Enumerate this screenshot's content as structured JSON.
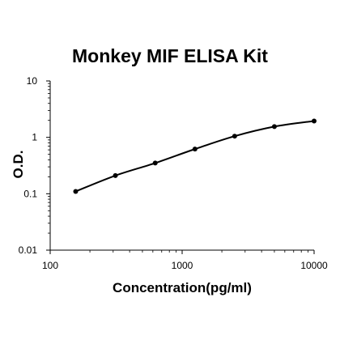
{
  "chart_data": {
    "type": "line",
    "title": "Monkey MIF ELISA Kit",
    "xlabel": "Concentration(pg/ml)",
    "ylabel": "O.D.",
    "xscale": "log",
    "yscale": "log",
    "xlim": [
      100,
      10000
    ],
    "ylim": [
      0.01,
      10
    ],
    "x_ticks": [
      "100",
      "1000",
      "10000"
    ],
    "y_ticks": [
      "10",
      "1",
      "0.1",
      "0.01"
    ],
    "grid": false,
    "legend": "none",
    "series": [
      {
        "x": [
          156,
          312,
          625,
          1250,
          2500,
          5000,
          10000
        ],
        "y": [
          0.11,
          0.21,
          0.35,
          0.62,
          1.05,
          1.55,
          1.95
        ]
      }
    ],
    "line_color": "#000000",
    "marker_color": "#000000"
  }
}
